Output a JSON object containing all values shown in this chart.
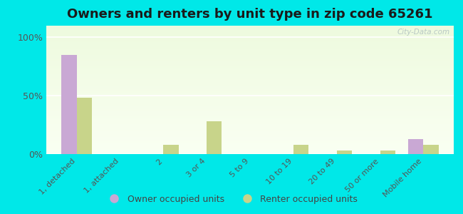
{
  "title": "Owners and renters by unit type in zip code 65261",
  "categories": [
    "1, detached",
    "1, attached",
    "2",
    "3 or 4",
    "5 to 9",
    "10 to 19",
    "20 to 49",
    "50 or more",
    "Mobile home"
  ],
  "owner_values": [
    85,
    0,
    0,
    0,
    0,
    0,
    0,
    0,
    13
  ],
  "renter_values": [
    48,
    0,
    8,
    28,
    0,
    8,
    3,
    3,
    8
  ],
  "owner_color": "#c9a8d4",
  "renter_color": "#c8d48a",
  "outer_bg": "#00e8e8",
  "yticks": [
    0,
    50,
    100
  ],
  "ylabels": [
    "0%",
    "50%",
    "100%"
  ],
  "ylim": [
    0,
    110
  ],
  "title_fontsize": 13,
  "legend_owner": "Owner occupied units",
  "legend_renter": "Renter occupied units",
  "bar_width": 0.35,
  "watermark": "City-Data.com"
}
